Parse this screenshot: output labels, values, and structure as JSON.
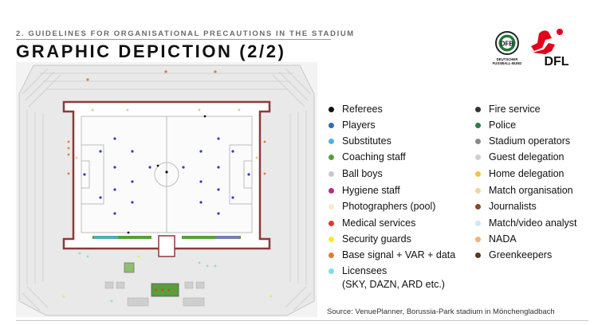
{
  "header": {
    "section": "2. GUIDELINES FOR ORGANISATIONAL PRECAUTIONS IN THE STADIUM",
    "title": "GRAPHIC DEPICTION (2/2)"
  },
  "logos": {
    "dfb_text": "DEUTSCHER FUSSBALL-BUND",
    "dfl_text": "DFL"
  },
  "legend_left": [
    {
      "label": "Referees",
      "color": "#111111"
    },
    {
      "label": "Players",
      "color": "#2f6fb5"
    },
    {
      "label": "Substitutes",
      "color": "#4fb3e8"
    },
    {
      "label": "Coaching staff",
      "color": "#5a9e3a"
    },
    {
      "label": "Ball boys",
      "color": "#c8c8c8"
    },
    {
      "label": "Hygiene staff",
      "color": "#b0308a"
    },
    {
      "label": "Photographers (pool)",
      "color": "#f6ead2"
    },
    {
      "label": "Medical services",
      "color": "#e23a2a"
    },
    {
      "label": "Security guards",
      "color": "#f4ea3a"
    },
    {
      "label": "Base signal + VAR + data",
      "color": "#e07a3a"
    },
    {
      "label": "Licensees\n(SKY, DAZN, ARD etc.)",
      "color": "#7fe0e0"
    }
  ],
  "legend_right": [
    {
      "label": "Fire service",
      "color": "#333333"
    },
    {
      "label": "Police",
      "color": "#2e7d4a"
    },
    {
      "label": "Stadium operators",
      "color": "#8a8a8a"
    },
    {
      "label": "Guest delegation",
      "color": "#cfcfcf"
    },
    {
      "label": "Home delegation",
      "color": "#f2c24a"
    },
    {
      "label": "Match organisation",
      "color": "#f2d2a8"
    },
    {
      "label": "Journalists",
      "color": "#8a4a22"
    },
    {
      "label": "Match/video analyst",
      "color": "#cfe6f6"
    },
    {
      "label": "NADA",
      "color": "#f2b27a"
    },
    {
      "label": "Greenkeepers",
      "color": "#5a3818"
    }
  ],
  "source": "Source: VenuePlanner, Borussia-Park stadium in Mönchengladbach"
}
